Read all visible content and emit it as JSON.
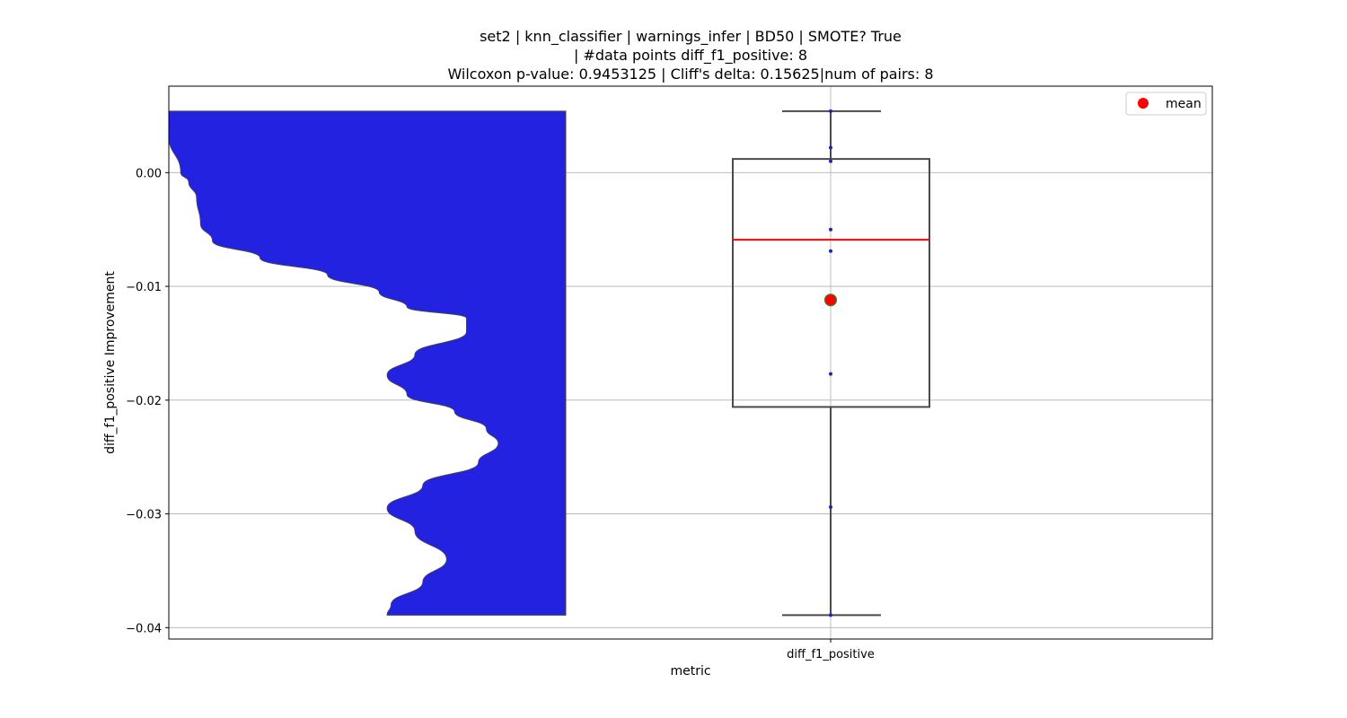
{
  "chart_data": {
    "type": "violin+box",
    "title_lines": [
      "set2 | knn_classifier | warnings_infer | BD50 | SMOTE? True",
      "| #data points diff_f1_positive: 8",
      "Wilcoxon p-value: 0.9453125 | Cliff's delta: 0.15625|num of pairs: 8"
    ],
    "xlabel": "metric",
    "ylabel": "diff_f1_positive Improvement",
    "categories": [
      "diff_f1_positive"
    ],
    "ylim": [
      -0.041,
      0.0076
    ],
    "yticks": [
      0.0,
      -0.01,
      -0.02,
      -0.03,
      -0.04
    ],
    "ytick_labels": [
      "0.00",
      "−0.01",
      "−0.02",
      "−0.03",
      "−0.04"
    ],
    "grid": true,
    "points": [
      0.0054,
      0.0022,
      0.001,
      -0.005,
      -0.0069,
      -0.0177,
      -0.0294,
      -0.0389
    ],
    "box": {
      "whisker_low": -0.0389,
      "q1": -0.0206,
      "median": -0.0059,
      "q3": 0.0012,
      "whisker_high": 0.0054
    },
    "mean": -0.0112,
    "violin_profile": [
      [
        0.0054,
        1.0
      ],
      [
        0.0032,
        1.0
      ],
      [
        0.0,
        0.97
      ],
      [
        -0.0008,
        0.95
      ],
      [
        -0.0022,
        0.93
      ],
      [
        -0.0045,
        0.92
      ],
      [
        -0.006,
        0.89
      ],
      [
        -0.0075,
        0.77
      ],
      [
        -0.009,
        0.6
      ],
      [
        -0.0105,
        0.47
      ],
      [
        -0.0118,
        0.4
      ],
      [
        -0.0128,
        0.25
      ],
      [
        -0.014,
        0.25
      ],
      [
        -0.016,
        0.38
      ],
      [
        -0.0178,
        0.45
      ],
      [
        -0.0195,
        0.4
      ],
      [
        -0.021,
        0.28
      ],
      [
        -0.0225,
        0.2
      ],
      [
        -0.0238,
        0.17
      ],
      [
        -0.0255,
        0.22
      ],
      [
        -0.0275,
        0.36
      ],
      [
        -0.0295,
        0.45
      ],
      [
        -0.0315,
        0.38
      ],
      [
        -0.034,
        0.3
      ],
      [
        -0.036,
        0.36
      ],
      [
        -0.038,
        0.44
      ],
      [
        -0.0389,
        0.45
      ]
    ],
    "legend": {
      "label": "mean",
      "placement": "upper right"
    },
    "colors": {
      "violin_fill": "#2222e0",
      "violin_edge": "#444444",
      "box_edge": "#4a4a4a",
      "median": "#ff0000",
      "mean_fill": "#ff0000",
      "mean_edge": "#2e8b2e",
      "points": "#1f1fd0",
      "grid": "#b0b0b0"
    }
  }
}
